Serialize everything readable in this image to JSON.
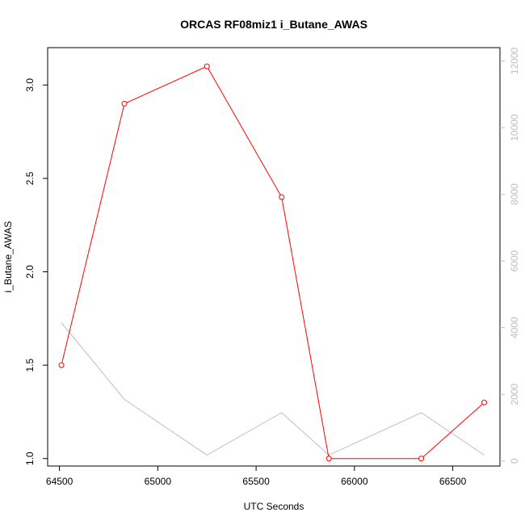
{
  "chart_data": {
    "type": "line",
    "title": "ORCAS RF08miz1 i_Butane_AWAS",
    "xlabel": "UTC Seconds",
    "ylabel": "i_Butane_AWAS",
    "xlim": [
      64440,
      66740
    ],
    "ylim": [
      0.96,
      3.2
    ],
    "y2lim": [
      -150,
      12400
    ],
    "x_ticks": [
      64500,
      65000,
      65500,
      66000,
      66500
    ],
    "y_ticks": [
      1.0,
      1.5,
      2.0,
      2.5,
      3.0
    ],
    "y2_ticks": [
      0,
      2000,
      4000,
      6000,
      8000,
      10000,
      12000
    ],
    "series": [
      {
        "color": "#ff0000",
        "axis": "left",
        "markers": true,
        "x": [
          64510,
          64830,
          65250,
          65630,
          65870,
          66340,
          66660
        ],
        "y": [
          1.5,
          2.9,
          3.1,
          2.4,
          1.0,
          1.0,
          1.3
        ]
      },
      {
        "color": "#c0c0c0",
        "axis": "right",
        "markers": false,
        "x": [
          64510,
          64830,
          65250,
          65630,
          65870,
          66340,
          66660
        ],
        "y": [
          4150,
          1850,
          180,
          1450,
          180,
          1450,
          180
        ]
      }
    ]
  }
}
